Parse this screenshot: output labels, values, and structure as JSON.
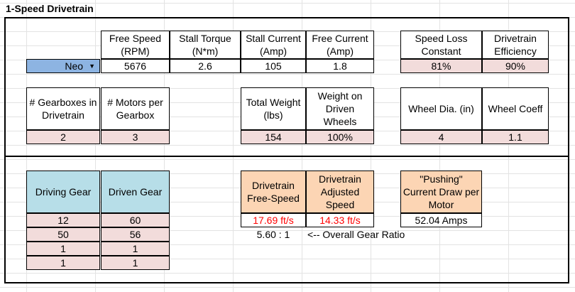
{
  "title": "1-Speed Drivetrain",
  "motor": {
    "selected": "Neo",
    "dropdown_icon": "caret-down-icon",
    "headers": {
      "free_speed": "Free Speed (RPM)",
      "stall_torque": "Stall Torque (N*m)",
      "stall_current": "Stall Current (Amp)",
      "free_current": "Free Current (Amp)"
    },
    "values": {
      "free_speed": "5676",
      "stall_torque": "2.6",
      "stall_current": "105",
      "free_current": "1.8"
    }
  },
  "losses": {
    "headers": {
      "speed_loss": "Speed Loss Constant",
      "efficiency": "Drivetrain Efficiency"
    },
    "values": {
      "speed_loss": "81%",
      "efficiency": "90%"
    }
  },
  "config": {
    "headers": {
      "gearboxes": "# Gearboxes in Drivetrain",
      "motors_per_gearbox": "# Motors per Gearbox",
      "total_weight": "Total Weight (lbs)",
      "weight_on_driven": "Weight on Driven Wheels",
      "wheel_dia": "Wheel Dia. (in)",
      "wheel_coeff": "Wheel Coeff"
    },
    "values": {
      "gearboxes": "2",
      "motors_per_gearbox": "3",
      "total_weight": "154",
      "weight_on_driven": "100%",
      "wheel_dia": "4",
      "wheel_coeff": "1.1"
    }
  },
  "gears": {
    "header_driving": "Driving Gear",
    "header_driven": "Driven Gear",
    "rows": [
      {
        "driving": "12",
        "driven": "60"
      },
      {
        "driving": "50",
        "driven": "56"
      },
      {
        "driving": "1",
        "driven": "1"
      },
      {
        "driving": "1",
        "driven": "1"
      }
    ]
  },
  "results": {
    "free_speed_label": "Drivetrain Free-Speed",
    "adjusted_speed_label": "Drivetrain Adjusted Speed",
    "pushing_label": "\"Pushing\" Current Draw per Motor",
    "free_speed_value": "17.69 ft/s",
    "adjusted_speed_value": "14.33 ft/s",
    "pushing_value": "52.04 Amps",
    "gear_ratio_value": "5.60 : 1",
    "gear_ratio_note": "<-- Overall Gear Ratio"
  },
  "colors": {
    "input_pink": "#f2dcdb",
    "header_blue": "#b7dee8",
    "result_orange": "#fcd5b4",
    "dropdown_blue": "#8db4e2",
    "output_red": "#ff0000"
  }
}
